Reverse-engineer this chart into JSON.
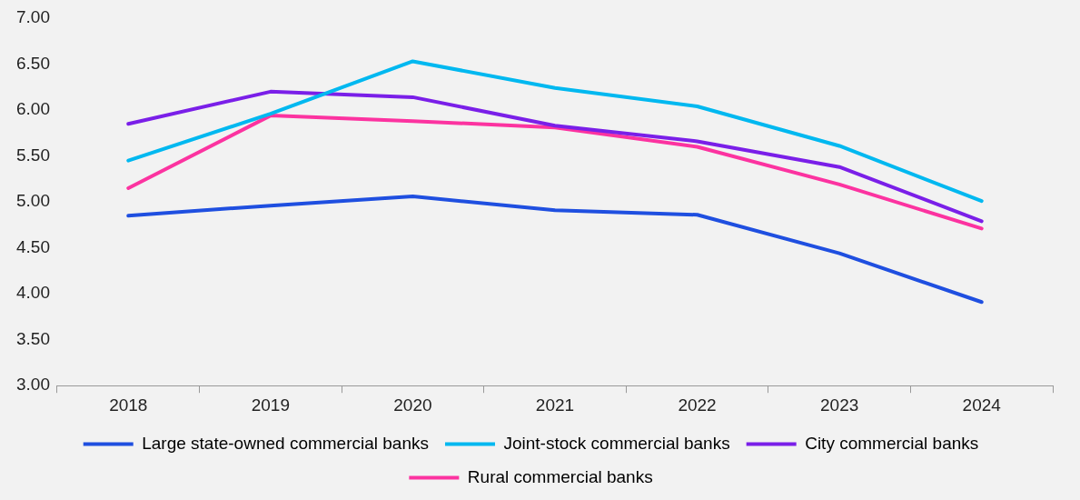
{
  "chart_data": {
    "type": "line",
    "categories": [
      "2018",
      "2019",
      "2020",
      "2021",
      "2022",
      "2023",
      "2024"
    ],
    "series": [
      {
        "name": "Large state-owned commercial banks",
        "color": "#1f4fe0",
        "values": [
          4.85,
          4.96,
          5.06,
          4.91,
          4.86,
          4.44,
          3.91
        ]
      },
      {
        "name": "Joint-stock commercial banks",
        "color": "#00b8f0",
        "values": [
          5.45,
          5.96,
          6.53,
          6.24,
          6.04,
          5.61,
          5.01
        ]
      },
      {
        "name": "City commercial banks",
        "color": "#7a1fe8",
        "values": [
          5.85,
          6.2,
          6.14,
          5.83,
          5.66,
          5.38,
          4.79
        ]
      },
      {
        "name": "Rural commercial banks",
        "color": "#fc33a0",
        "values": [
          5.15,
          5.94,
          5.88,
          5.81,
          5.6,
          5.19,
          4.71
        ]
      }
    ],
    "ylim": [
      3,
      7
    ],
    "yticks": [
      {
        "value": 3,
        "label": "3.00"
      },
      {
        "value": 3.5,
        "label": "3.50"
      },
      {
        "value": 4,
        "label": "4.00"
      },
      {
        "value": 4.5,
        "label": "4.50"
      },
      {
        "value": 5,
        "label": "5.00"
      },
      {
        "value": 5.5,
        "label": "5.50"
      },
      {
        "value": 6,
        "label": "6.00"
      },
      {
        "value": 6.5,
        "label": "6.50"
      },
      {
        "value": 7,
        "label": "7.00"
      }
    ],
    "grid": false,
    "legend": "bottom",
    "marker": "none",
    "line_style": "solid"
  }
}
